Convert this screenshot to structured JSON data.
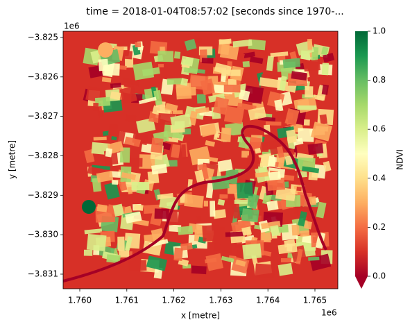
{
  "chart_data": {
    "type": "image",
    "title": "time = 2018-01-04T08:57:02 [seconds since 1970-...",
    "xlabel": "x [metre]",
    "ylabel": "y [metre]",
    "x_offset": "1e6",
    "y_offset": "1e6",
    "xlim": [
      1759646,
      1765487
    ],
    "xticks": [
      {
        "value": 1760000,
        "label": "1.760"
      },
      {
        "value": 1761000,
        "label": "1.761"
      },
      {
        "value": 1762000,
        "label": "1.762"
      },
      {
        "value": 1763000,
        "label": "1.763"
      },
      {
        "value": 1764000,
        "label": "1.764"
      },
      {
        "value": 1765000,
        "label": "1.765"
      }
    ],
    "ylim": [
      -3831370,
      -3824842
    ],
    "yticks": [
      {
        "value": -3825000,
        "label": "−3.825"
      },
      {
        "value": -3826000,
        "label": "−3.826"
      },
      {
        "value": -3827000,
        "label": "−3.827"
      },
      {
        "value": -3828000,
        "label": "−3.828"
      },
      {
        "value": -3829000,
        "label": "−3.829"
      },
      {
        "value": -3830000,
        "label": "−3.830"
      },
      {
        "value": -3831000,
        "label": "−3.831"
      }
    ],
    "colorbar": {
      "label": "NDVI",
      "lim": [
        0,
        1
      ],
      "ticks": [
        {
          "value": 0,
          "label": "0.0"
        },
        0.2,
        0.4,
        0.6,
        0.8,
        {
          "value": 1,
          "label": "1.0"
        }
      ],
      "extend": "min",
      "colormap": [
        "#a50026",
        "#d73027",
        "#f46d43",
        "#fdae61",
        "#fee08b",
        "#ffffbf",
        "#d9ef8b",
        "#a6d96a",
        "#66bd63",
        "#1a9850",
        "#006837"
      ]
    }
  }
}
